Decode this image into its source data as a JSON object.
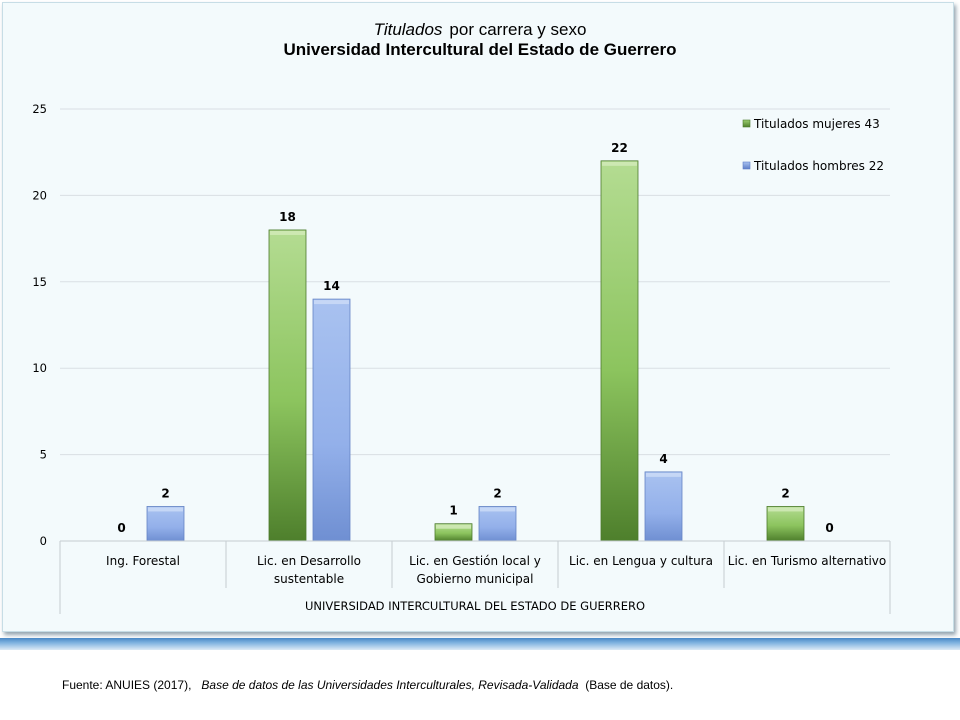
{
  "chart_data": {
    "type": "bar",
    "title_italic": "Titulados",
    "title_rest": "por carrera y sexo",
    "subtitle": "Universidad Intercultural del Estado de Guerrero",
    "xlabel": "UNIVERSIDAD INTERCULTURAL DEL ESTADO DE GUERRERO",
    "ylabel": "",
    "ylim": [
      0,
      25
    ],
    "yticks": [
      0,
      5,
      10,
      15,
      20,
      25
    ],
    "categories": [
      [
        "Ing. Forestal"
      ],
      [
        "Lic. en Desarrollo",
        "sustentable"
      ],
      [
        "Lic. en Gestión local y",
        "Gobierno municipal"
      ],
      [
        "Lic. en Lengua y cultura"
      ],
      [
        "Lic. en Turismo alternativo"
      ]
    ],
    "series": [
      {
        "name": "Titulados mujeres 43",
        "values": [
          0,
          18,
          1,
          22,
          2
        ],
        "color": "#7fbf4d"
      },
      {
        "name": "Titulados hombres 22",
        "values": [
          2,
          14,
          2,
          4,
          0
        ],
        "color": "#8eabe5"
      }
    ],
    "legend_position": "top-right",
    "grid": true
  },
  "source": {
    "prefix": "Fuente: ANUIES (2017),",
    "italic": "Base de datos de las Universidades  Interculturales, Revisada-Validada",
    "suffix": "(Base de datos)."
  }
}
